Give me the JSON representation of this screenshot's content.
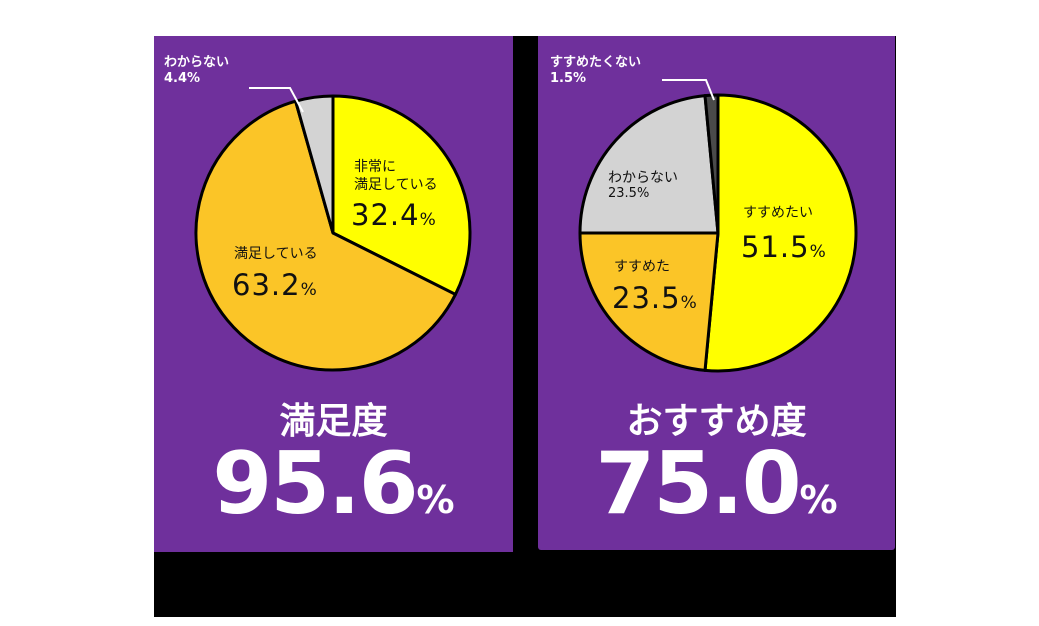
{
  "panels": [
    {
      "title": "満足度",
      "total_value": "95.6",
      "total_unit": "%",
      "slices": [
        {
          "label_line1": "非常に",
          "label_line2": "満足している",
          "value": "32.4",
          "unit": "%"
        },
        {
          "label": "満足している",
          "value": "63.2",
          "unit": "%"
        },
        {
          "label": "わからない",
          "value": "4.4%"
        }
      ]
    },
    {
      "title": "おすすめ度",
      "total_value": "75.0",
      "total_unit": "%",
      "slices": [
        {
          "label": "すすめたい",
          "value": "51.5",
          "unit": "%"
        },
        {
          "label": "すすめた",
          "value": "23.5",
          "unit": "%"
        },
        {
          "label": "わからない",
          "value": "23.5%"
        },
        {
          "label": "すすめたくない",
          "value": "1.5%"
        }
      ]
    }
  ],
  "colors": {
    "panel_bg": "#6f309c",
    "backdrop": "#000000",
    "very_satisfied": "#ffff00",
    "satisfied": "#fbc527",
    "unknown": "#d3d3d3",
    "not_recommend": "#4a4a4a",
    "outline": "#000000"
  },
  "chart_data": [
    {
      "type": "pie",
      "title": "満足度",
      "summary": "95.6%",
      "categories": [
        "非常に満足している",
        "満足している",
        "わからない"
      ],
      "values": [
        32.4,
        63.2,
        4.4
      ],
      "colors": [
        "#ffff00",
        "#fbc527",
        "#d3d3d3"
      ],
      "start_angle": "12 o'clock, clockwise"
    },
    {
      "type": "pie",
      "title": "おすすめ度",
      "summary": "75.0%",
      "categories": [
        "すすめたい",
        "すすめた",
        "わからない",
        "すすめたくない"
      ],
      "values": [
        51.5,
        23.5,
        23.5,
        1.5
      ],
      "colors": [
        "#ffff00",
        "#fbc527",
        "#d3d3d3",
        "#4a4a4a"
      ],
      "start_angle": "12 o'clock, clockwise"
    }
  ]
}
